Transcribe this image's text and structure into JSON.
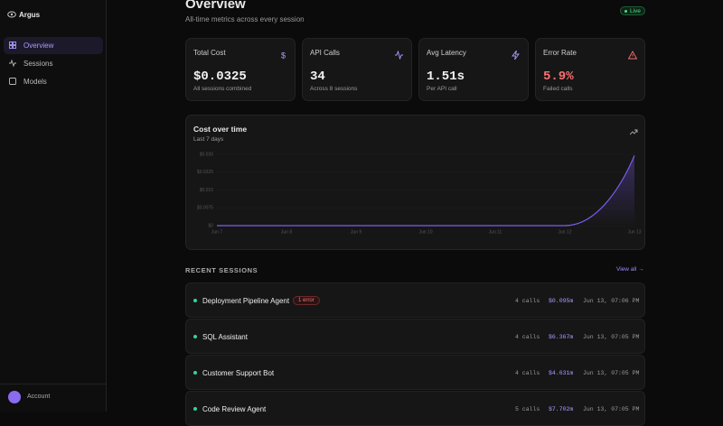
{
  "sidebar": {
    "brand": "Argus",
    "nav": [
      "Overview",
      "Sessions",
      "Models"
    ],
    "account": "Account"
  },
  "header": {
    "title": "Overview",
    "subtitle": "All-time metrics across every session",
    "status": "Live"
  },
  "cards": [
    {
      "label": "Total Cost",
      "value": "$0.0325",
      "note": "All sessions combined"
    },
    {
      "label": "API Calls",
      "value": "34",
      "note": "Across 8 sessions"
    },
    {
      "label": "Avg Latency",
      "value": "1.51s",
      "note": "Per API call"
    },
    {
      "label": "Error Rate",
      "value": "5.9%",
      "note": "Failed calls"
    }
  ],
  "cost_chart": {
    "type": "line",
    "title": "Cost over time",
    "subtitle": "Last 7 days",
    "categories": [
      "Jun 7",
      "Jun 8",
      "Jun 9",
      "Jun 10",
      "Jun 11",
      "Jun 12",
      "Jun 13"
    ],
    "values": [
      0,
      0,
      0,
      0,
      0,
      0,
      0.0295
    ],
    "color": "#7c5cf0",
    "ylim": [
      0,
      0.03
    ],
    "yticks": [
      {
        "value": 0,
        "label": "$0"
      },
      {
        "value": 0.0075,
        "label": "$0.0075"
      },
      {
        "value": 0.015,
        "label": "$0.015"
      },
      {
        "value": 0.0225,
        "label": "$0.0225"
      },
      {
        "value": 0.03,
        "label": "$0.030"
      }
    ]
  },
  "sessions": {
    "title": "RECENT SESSIONS",
    "view_all": "View all →",
    "rows": [
      {
        "name": "Deployment Pipeline Agent",
        "badge": "1 error",
        "calls": "4 calls",
        "cost": "$0.095m",
        "time": "Jun 13, 07:06 PM"
      },
      {
        "name": "SQL Assistant",
        "calls": "4 calls",
        "cost": "$6.367m",
        "time": "Jun 13, 07:05 PM"
      },
      {
        "name": "Customer Support Bot",
        "calls": "4 calls",
        "cost": "$4.631m",
        "time": "Jun 13, 07:05 PM"
      },
      {
        "name": "Code Review Agent",
        "calls": "5 calls",
        "cost": "$7.702m",
        "time": "Jun 13, 07:05 PM"
      }
    ]
  }
}
